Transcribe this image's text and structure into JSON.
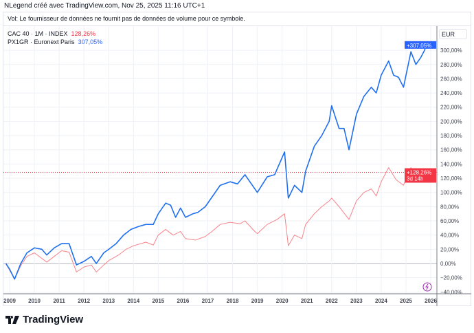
{
  "header": {
    "text": "NLegend créé avec TradingView.com, Nov 25, 2025 11:16 UTC+1"
  },
  "volume_notice": "Vol: Le fournisseur de données ne fournit pas de données de volume pour ce symbole.",
  "currency": "EUR",
  "brand": "TradingView",
  "chart_data": {
    "type": "line",
    "yscale": "percent",
    "ylim": [
      -40,
      310
    ],
    "xlim": [
      2008.8,
      2026.1
    ],
    "grid": true,
    "legend_placement": "top-left",
    "x_ticks": [
      "2009",
      "2010",
      "2011",
      "2012",
      "2013",
      "2014",
      "2015",
      "2016",
      "2017",
      "2018",
      "2019",
      "2020",
      "2021",
      "2022",
      "2023",
      "2024",
      "2025",
      "2026"
    ],
    "y_ticks": [
      "−40,00%",
      "−20,00%",
      "0,00%",
      "20,00%",
      "40,00%",
      "60,00%",
      "80,00%",
      "100,00%",
      "120,00%",
      "140,00%",
      "160,00%",
      "180,00%",
      "200,00%",
      "220,00%",
      "240,00%",
      "260,00%",
      "280,00%",
      "300,00%"
    ],
    "series": [
      {
        "name": "CAC 40 · 1M · INDEX",
        "last": "128,26%",
        "label": "+128,26%",
        "countdown": "3d 14h",
        "color": "#f23645",
        "line_color": "#f7828a",
        "points": [
          [
            2008.85,
            0
          ],
          [
            2009.2,
            -22
          ],
          [
            2009.45,
            -3
          ],
          [
            2009.7,
            10
          ],
          [
            2010.0,
            15
          ],
          [
            2010.5,
            2
          ],
          [
            2010.8,
            10
          ],
          [
            2011.1,
            18
          ],
          [
            2011.4,
            16
          ],
          [
            2011.7,
            -12
          ],
          [
            2012.0,
            -5
          ],
          [
            2012.3,
            -2
          ],
          [
            2012.5,
            -12
          ],
          [
            2012.8,
            -2
          ],
          [
            2013.0,
            4
          ],
          [
            2013.4,
            12
          ],
          [
            2013.7,
            20
          ],
          [
            2014.0,
            25
          ],
          [
            2014.5,
            30
          ],
          [
            2014.8,
            26
          ],
          [
            2015.0,
            40
          ],
          [
            2015.3,
            48
          ],
          [
            2015.6,
            40
          ],
          [
            2015.9,
            45
          ],
          [
            2016.1,
            35
          ],
          [
            2016.5,
            33
          ],
          [
            2016.9,
            38
          ],
          [
            2017.2,
            46
          ],
          [
            2017.5,
            55
          ],
          [
            2017.9,
            58
          ],
          [
            2018.3,
            56
          ],
          [
            2018.5,
            60
          ],
          [
            2018.9,
            45
          ],
          [
            2019.0,
            42
          ],
          [
            2019.4,
            55
          ],
          [
            2019.8,
            62
          ],
          [
            2020.1,
            70
          ],
          [
            2020.25,
            25
          ],
          [
            2020.5,
            40
          ],
          [
            2020.8,
            35
          ],
          [
            2020.95,
            55
          ],
          [
            2021.3,
            70
          ],
          [
            2021.6,
            80
          ],
          [
            2021.9,
            88
          ],
          [
            2022.0,
            92
          ],
          [
            2022.3,
            80
          ],
          [
            2022.7,
            62
          ],
          [
            2023.0,
            88
          ],
          [
            2023.3,
            100
          ],
          [
            2023.6,
            105
          ],
          [
            2023.8,
            95
          ],
          [
            2024.0,
            115
          ],
          [
            2024.3,
            135
          ],
          [
            2024.6,
            118
          ],
          [
            2024.9,
            110
          ],
          [
            2025.2,
            135
          ],
          [
            2025.4,
            120
          ],
          [
            2025.6,
            122
          ],
          [
            2025.8,
            125
          ],
          [
            2025.87,
            132
          ],
          [
            2025.95,
            128.26
          ]
        ]
      },
      {
        "name": "PX1GR · Euronext Paris",
        "last": "307,05%",
        "label": "+307,05%",
        "color": "#2962ff",
        "line_color": "#1e6ff0",
        "points": [
          [
            2008.85,
            0
          ],
          [
            2009.0,
            -8
          ],
          [
            2009.2,
            -22
          ],
          [
            2009.45,
            0
          ],
          [
            2009.7,
            15
          ],
          [
            2010.0,
            22
          ],
          [
            2010.3,
            20
          ],
          [
            2010.5,
            12
          ],
          [
            2010.8,
            22
          ],
          [
            2011.1,
            28
          ],
          [
            2011.4,
            28
          ],
          [
            2011.7,
            -2
          ],
          [
            2012.0,
            3
          ],
          [
            2012.3,
            10
          ],
          [
            2012.5,
            0
          ],
          [
            2012.8,
            15
          ],
          [
            2013.0,
            20
          ],
          [
            2013.3,
            28
          ],
          [
            2013.6,
            40
          ],
          [
            2013.9,
            48
          ],
          [
            2014.2,
            52
          ],
          [
            2014.5,
            55
          ],
          [
            2014.8,
            55
          ],
          [
            2015.0,
            70
          ],
          [
            2015.3,
            85
          ],
          [
            2015.5,
            82
          ],
          [
            2015.7,
            65
          ],
          [
            2015.9,
            78
          ],
          [
            2016.1,
            65
          ],
          [
            2016.4,
            70
          ],
          [
            2016.6,
            72
          ],
          [
            2016.9,
            80
          ],
          [
            2017.2,
            95
          ],
          [
            2017.5,
            110
          ],
          [
            2017.9,
            115
          ],
          [
            2018.2,
            112
          ],
          [
            2018.5,
            125
          ],
          [
            2018.9,
            105
          ],
          [
            2019.0,
            100
          ],
          [
            2019.4,
            122
          ],
          [
            2019.7,
            125
          ],
          [
            2020.1,
            157
          ],
          [
            2020.25,
            92
          ],
          [
            2020.5,
            110
          ],
          [
            2020.8,
            100
          ],
          [
            2020.95,
            130
          ],
          [
            2021.3,
            165
          ],
          [
            2021.6,
            180
          ],
          [
            2021.9,
            200
          ],
          [
            2022.0,
            222
          ],
          [
            2022.3,
            190
          ],
          [
            2022.5,
            190
          ],
          [
            2022.7,
            160
          ],
          [
            2023.0,
            210
          ],
          [
            2023.3,
            235
          ],
          [
            2023.6,
            248
          ],
          [
            2023.8,
            240
          ],
          [
            2024.0,
            265
          ],
          [
            2024.3,
            285
          ],
          [
            2024.5,
            265
          ],
          [
            2024.7,
            262
          ],
          [
            2024.9,
            248
          ],
          [
            2025.2,
            298
          ],
          [
            2025.4,
            280
          ],
          [
            2025.6,
            290
          ],
          [
            2025.75,
            300
          ],
          [
            2025.85,
            312
          ],
          [
            2025.95,
            307.05
          ]
        ]
      }
    ]
  }
}
